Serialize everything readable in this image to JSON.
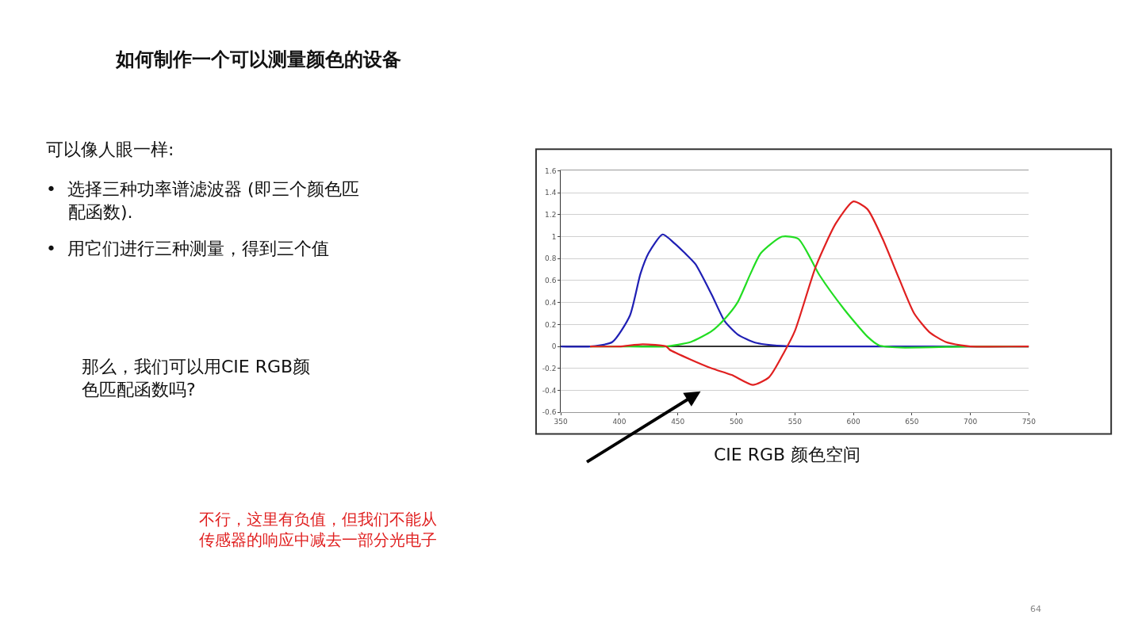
{
  "chart_data": {
    "type": "line",
    "title": "如何制作一个可以测量颜色的设备",
    "annotations": [
      "可以像人眼一样:",
      "•  选择三种功率谱滤波器 (即三个颜色匹配函数).",
      "•  用它们进行三种测量，得到三个值",
      "那么，我们可以用CIE RGB颜色匹配函数吗?",
      "CIE RGB 颜色空间",
      "不行，这里有负值，但我们不能从传感器的响应中减去一部分光电子",
      "64"
    ],
    "series": [
      {
        "color": "#1f1fb4",
        "x": [
          350,
          375,
          394,
          409,
          418,
          425,
          437,
          447,
          456,
          465,
          479,
          490,
          501,
          516,
          539,
          560,
          600,
          650,
          700,
          750
        ],
        "values": [
          0,
          0,
          0.04,
          0.28,
          0.66,
          0.85,
          1.02,
          0.94,
          0.85,
          0.75,
          0.47,
          0.23,
          0.11,
          0.035,
          0.005,
          0,
          0,
          0,
          0,
          0
        ]
      },
      {
        "color": "#22dd22",
        "x": [
          375,
          400,
          439,
          461,
          479,
          490,
          501,
          512,
          521,
          539,
          553,
          571,
          592,
          612,
          622,
          640,
          700,
          750
        ],
        "values": [
          0,
          0,
          0,
          0.04,
          0.14,
          0.25,
          0.4,
          0.66,
          0.85,
          1.0,
          0.98,
          0.65,
          0.34,
          0.09,
          0.01,
          -0.01,
          0,
          0
        ]
      },
      {
        "color": "#e02020",
        "x": [
          375,
          400,
          420,
          440,
          443,
          461,
          479,
          496,
          514,
          528,
          541,
          550,
          568,
          585,
          600,
          612,
          625,
          639,
          652,
          665,
          679,
          692,
          700,
          750
        ],
        "values": [
          0,
          0,
          0.02,
          0,
          -0.03,
          -0.12,
          -0.2,
          -0.26,
          -0.35,
          -0.28,
          -0.05,
          0.14,
          0.73,
          1.12,
          1.32,
          1.25,
          0.98,
          0.62,
          0.3,
          0.13,
          0.04,
          0.01,
          0,
          0
        ]
      }
    ],
    "xlim": [
      350,
      750
    ],
    "xticks": [
      350,
      400,
      450,
      500,
      550,
      600,
      650,
      700,
      750
    ],
    "ylim": [
      -0.6,
      1.6
    ],
    "yticks": [
      -0.6,
      -0.4,
      -0.2,
      0,
      0.2,
      0.4,
      0.6,
      0.8,
      1,
      1.2,
      1.4,
      1.6
    ],
    "grid": "y",
    "line_style": "solid",
    "marker": "none"
  }
}
